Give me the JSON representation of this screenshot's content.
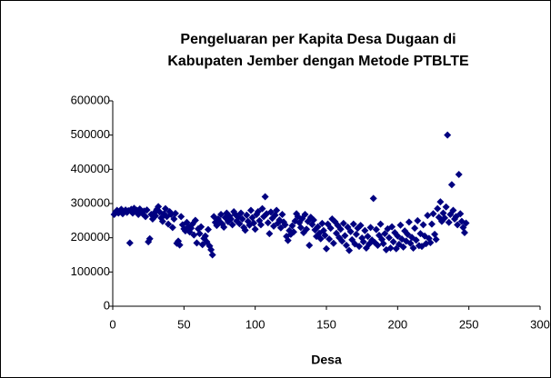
{
  "chart_data": {
    "type": "scatter",
    "title": [
      "Pengeluaran per Kapita Desa Dugaan di",
      "Kabupaten Jember dengan Metode PTBLTE"
    ],
    "x_label": "Desa",
    "color": "#000080",
    "xlim": [
      0,
      300
    ],
    "xticks": [
      0,
      50,
      100,
      150,
      200,
      250,
      300
    ],
    "ylim": [
      0,
      600000
    ],
    "yticks": [
      0,
      100000,
      200000,
      300000,
      400000,
      500000,
      600000
    ],
    "grid": false,
    "x": [
      1,
      2,
      3,
      4,
      5,
      6,
      7,
      8,
      9,
      10,
      11,
      12,
      13,
      14,
      15,
      16,
      17,
      18,
      19,
      20,
      21,
      22,
      23,
      24,
      25,
      26,
      27,
      28,
      29,
      30,
      31,
      32,
      33,
      34,
      35,
      36,
      37,
      38,
      39,
      40,
      41,
      42,
      43,
      44,
      45,
      46,
      47,
      48,
      49,
      50,
      51,
      52,
      53,
      54,
      55,
      56,
      57,
      58,
      59,
      60,
      61,
      62,
      63,
      64,
      65,
      66,
      67,
      68,
      69,
      70,
      71,
      72,
      73,
      74,
      75,
      76,
      77,
      78,
      79,
      80,
      81,
      82,
      83,
      84,
      85,
      86,
      87,
      88,
      89,
      90,
      91,
      92,
      93,
      94,
      95,
      96,
      97,
      98,
      99,
      100,
      101,
      102,
      103,
      104,
      105,
      106,
      107,
      108,
      109,
      110,
      111,
      112,
      113,
      114,
      115,
      116,
      117,
      118,
      119,
      120,
      121,
      122,
      123,
      124,
      125,
      126,
      127,
      128,
      129,
      130,
      131,
      132,
      133,
      134,
      135,
      136,
      137,
      138,
      139,
      140,
      141,
      142,
      143,
      144,
      145,
      146,
      147,
      148,
      149,
      150,
      151,
      152,
      153,
      154,
      155,
      156,
      157,
      158,
      159,
      160,
      161,
      162,
      163,
      164,
      165,
      166,
      167,
      168,
      169,
      170,
      171,
      172,
      173,
      174,
      175,
      176,
      177,
      178,
      179,
      180,
      181,
      182,
      183,
      184,
      185,
      186,
      187,
      188,
      189,
      190,
      191,
      192,
      193,
      194,
      195,
      196,
      197,
      198,
      199,
      200,
      201,
      202,
      203,
      204,
      205,
      206,
      207,
      208,
      209,
      210,
      211,
      212,
      213,
      214,
      215,
      216,
      217,
      218,
      219,
      220,
      221,
      222,
      223,
      224,
      225,
      226,
      227,
      228,
      229,
      230,
      231,
      232,
      233,
      234,
      235,
      236,
      237,
      238,
      239,
      240,
      241,
      242,
      243,
      244,
      245,
      246,
      247,
      248
    ],
    "values": [
      268000,
      275000,
      280000,
      272000,
      278000,
      283000,
      270000,
      276000,
      281000,
      274000,
      279000,
      185000,
      283000,
      272000,
      286000,
      277000,
      280000,
      268000,
      284000,
      275000,
      270000,
      278000,
      262000,
      281000,
      188000,
      197000,
      268000,
      255000,
      272000,
      264000,
      283000,
      291000,
      275000,
      258000,
      248000,
      270000,
      285000,
      262000,
      240000,
      276000,
      268000,
      230000,
      255000,
      271000,
      184000,
      190000,
      179000,
      262000,
      238000,
      226000,
      220000,
      245000,
      232000,
      217000,
      228000,
      240000,
      208000,
      251000,
      185000,
      226000,
      212000,
      232000,
      180000,
      198000,
      205000,
      188000,
      224000,
      176000,
      165000,
      150000,
      262000,
      245000,
      236000,
      255000,
      248000,
      268000,
      240000,
      231000,
      259000,
      272000,
      247000,
      263000,
      255000,
      238000,
      276000,
      268000,
      249000,
      260000,
      241000,
      272000,
      255000,
      230000,
      222000,
      266000,
      248000,
      237000,
      280000,
      259000,
      243000,
      225000,
      268000,
      276000,
      250000,
      238000,
      285000,
      262000,
      320000,
      270000,
      244000,
      212000,
      275000,
      257000,
      234000,
      266000,
      280000,
      243000,
      252000,
      229000,
      268000,
      246000,
      238000,
      204000,
      192000,
      221000,
      210000,
      235000,
      217000,
      249000,
      270000,
      262000,
      244000,
      230000,
      256000,
      215000,
      268000,
      225000,
      248000,
      178000,
      260000,
      239000,
      252000,
      223000,
      204000,
      232000,
      213000,
      197000,
      242000,
      221000,
      207000,
      168000,
      240000,
      196000,
      228000,
      255000,
      184000,
      247000,
      213000,
      236000,
      200000,
      225000,
      190000,
      242000,
      206000,
      178000,
      231000,
      163000,
      218000,
      194000,
      240000,
      182000,
      210000,
      228000,
      175000,
      236000,
      199000,
      188000,
      221000,
      170000,
      204000,
      182000,
      230000,
      193000,
      315000,
      186000,
      224000,
      178000,
      207000,
      240000,
      195000,
      183000,
      212000,
      165000,
      226000,
      200000,
      170000,
      232000,
      188000,
      215000,
      168000,
      205000,
      181000,
      237000,
      196000,
      173000,
      220000,
      190000,
      210000,
      246000,
      184000,
      201000,
      170000,
      228000,
      193000,
      250000,
      177000,
      212000,
      175000,
      238000,
      205000,
      183000,
      265000,
      198000,
      186000,
      240000,
      270000,
      210000,
      195000,
      285000,
      260000,
      305000,
      248000,
      272000,
      258000,
      290000,
      500000,
      245000,
      268000,
      355000,
      280000,
      255000,
      262000,
      238000,
      385000,
      270000,
      248000,
      230000,
      215000,
      243000
    ]
  }
}
